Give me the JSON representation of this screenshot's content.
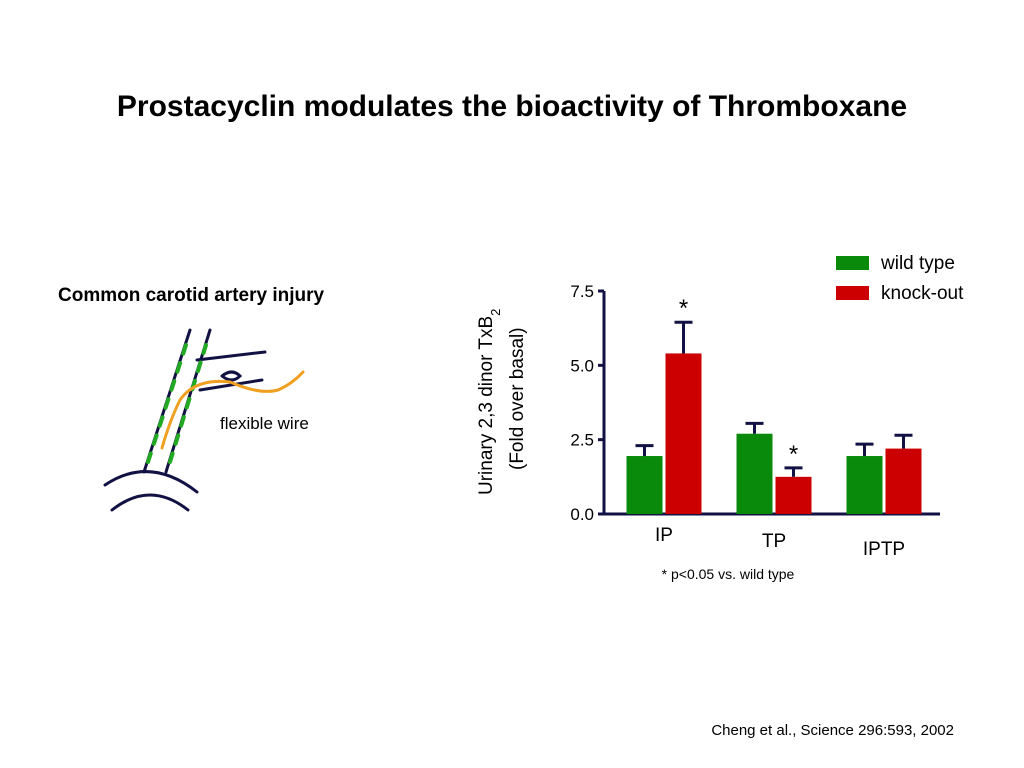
{
  "slide": {
    "title": "Prostacyclin modulates the bioactivity of Thromboxane",
    "diagram_title": "Common carotid artery injury",
    "wire_label": "flexible wire",
    "footnote": "* p<0.05 vs. wild type",
    "citation": "Cheng et al., Science 296:593, 2002"
  },
  "chart_data": {
    "type": "bar",
    "ylabel_line1": "Urinary 2,3 dinor TxB",
    "ylabel_sub": "2",
    "ylabel_line2": "(Fold over basal)",
    "ylim": [
      0,
      7.5
    ],
    "yticks": [
      "0.0",
      "2.5",
      "5.0",
      "7.5"
    ],
    "ytick_values": [
      0,
      2.5,
      5.0,
      7.5
    ],
    "categories": [
      "IP",
      "TP",
      "IPTP"
    ],
    "series": [
      {
        "name": "wild type",
        "color": "#0a8a0a",
        "values": [
          1.95,
          2.7,
          1.95
        ],
        "errors": [
          0.35,
          0.35,
          0.4
        ]
      },
      {
        "name": "knock-out",
        "color": "#cc0000",
        "values": [
          5.4,
          1.25,
          2.2
        ],
        "errors": [
          1.05,
          0.3,
          0.45
        ]
      }
    ],
    "annotations": [
      {
        "category": 0,
        "series": 1,
        "text": "*"
      },
      {
        "category": 1,
        "series": 1,
        "text": "*"
      }
    ],
    "legend_position": "top-right"
  }
}
